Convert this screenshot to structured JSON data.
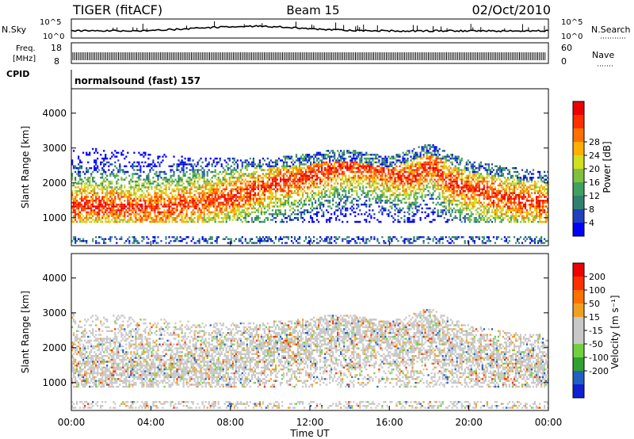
{
  "header": {
    "station": "TIGER (fitACF)",
    "beam": "Beam 15",
    "date": "02/Oct/2010"
  },
  "strip_labels": {
    "nsky": "N.Sky",
    "nsearch": "N.Search",
    "freq_line1": "Freq.",
    "freq_line2": "[MHz]",
    "nave": "Nave",
    "cpid": "CPID",
    "mode": "normalsound (fast) 157",
    "noise_tick_top": "10^5",
    "noise_tick_bottom": "10^0",
    "freq_tick_top": "18",
    "freq_tick_bottom": "8",
    "nave_tick_top": "60",
    "nave_tick_bottom": "0"
  },
  "colors": {
    "power_scale": [
      "#0000ff",
      "#2040c0",
      "#308070",
      "#40a060",
      "#80c040",
      "#d0e020",
      "#ffb000",
      "#ff7000",
      "#ff3000",
      "#ee0000"
    ],
    "velocity_scale": [
      "#1020d0",
      "#2060c0",
      "#30a030",
      "#70d040",
      "#c8c8c8",
      "#c8c8c8",
      "#f0a020",
      "#ff7000",
      "#ff3000",
      "#ee0000"
    ]
  },
  "chart_data": [
    {
      "type": "heatmap",
      "panel": "power",
      "xlabel": "Time UT",
      "ylabel": "Slant Range [km]",
      "x_ticks": [
        "00:00",
        "04:00",
        "08:00",
        "12:00",
        "16:00",
        "20:00",
        "00:00"
      ],
      "y_ticks": [
        1000,
        2000,
        3000,
        4000
      ],
      "ylim": [
        200,
        4700
      ],
      "colorbar_label": "Power [dB]",
      "colorbar_ticks": [
        4,
        8,
        12,
        16,
        20,
        24,
        28
      ],
      "scatter_band": {
        "time_hours": [
          0,
          2,
          4,
          6,
          8,
          10,
          12,
          13,
          14,
          15,
          16,
          17,
          18,
          19,
          20,
          22,
          24
        ],
        "center_km": [
          1300,
          1300,
          1250,
          1350,
          1550,
          1900,
          2200,
          2350,
          2450,
          2400,
          2250,
          2100,
          2500,
          2000,
          1800,
          1500,
          1350
        ],
        "upper_km": [
          2900,
          2800,
          2700,
          2600,
          2600,
          2600,
          2700,
          2800,
          2800,
          2700,
          2600,
          2800,
          3000,
          2700,
          2500,
          2300,
          2200
        ]
      }
    },
    {
      "type": "heatmap",
      "panel": "velocity",
      "xlabel": "Time UT",
      "ylabel": "Slant Range [km]",
      "x_ticks": [
        "00:00",
        "04:00",
        "08:00",
        "12:00",
        "16:00",
        "20:00",
        "00:00"
      ],
      "y_ticks": [
        1000,
        2000,
        3000,
        4000
      ],
      "ylim": [
        200,
        4700
      ],
      "colorbar_label": "Velocity [m s⁻¹]",
      "colorbar_ticks": [
        200,
        100,
        50,
        15,
        -15,
        -50,
        -100,
        -200
      ]
    }
  ]
}
